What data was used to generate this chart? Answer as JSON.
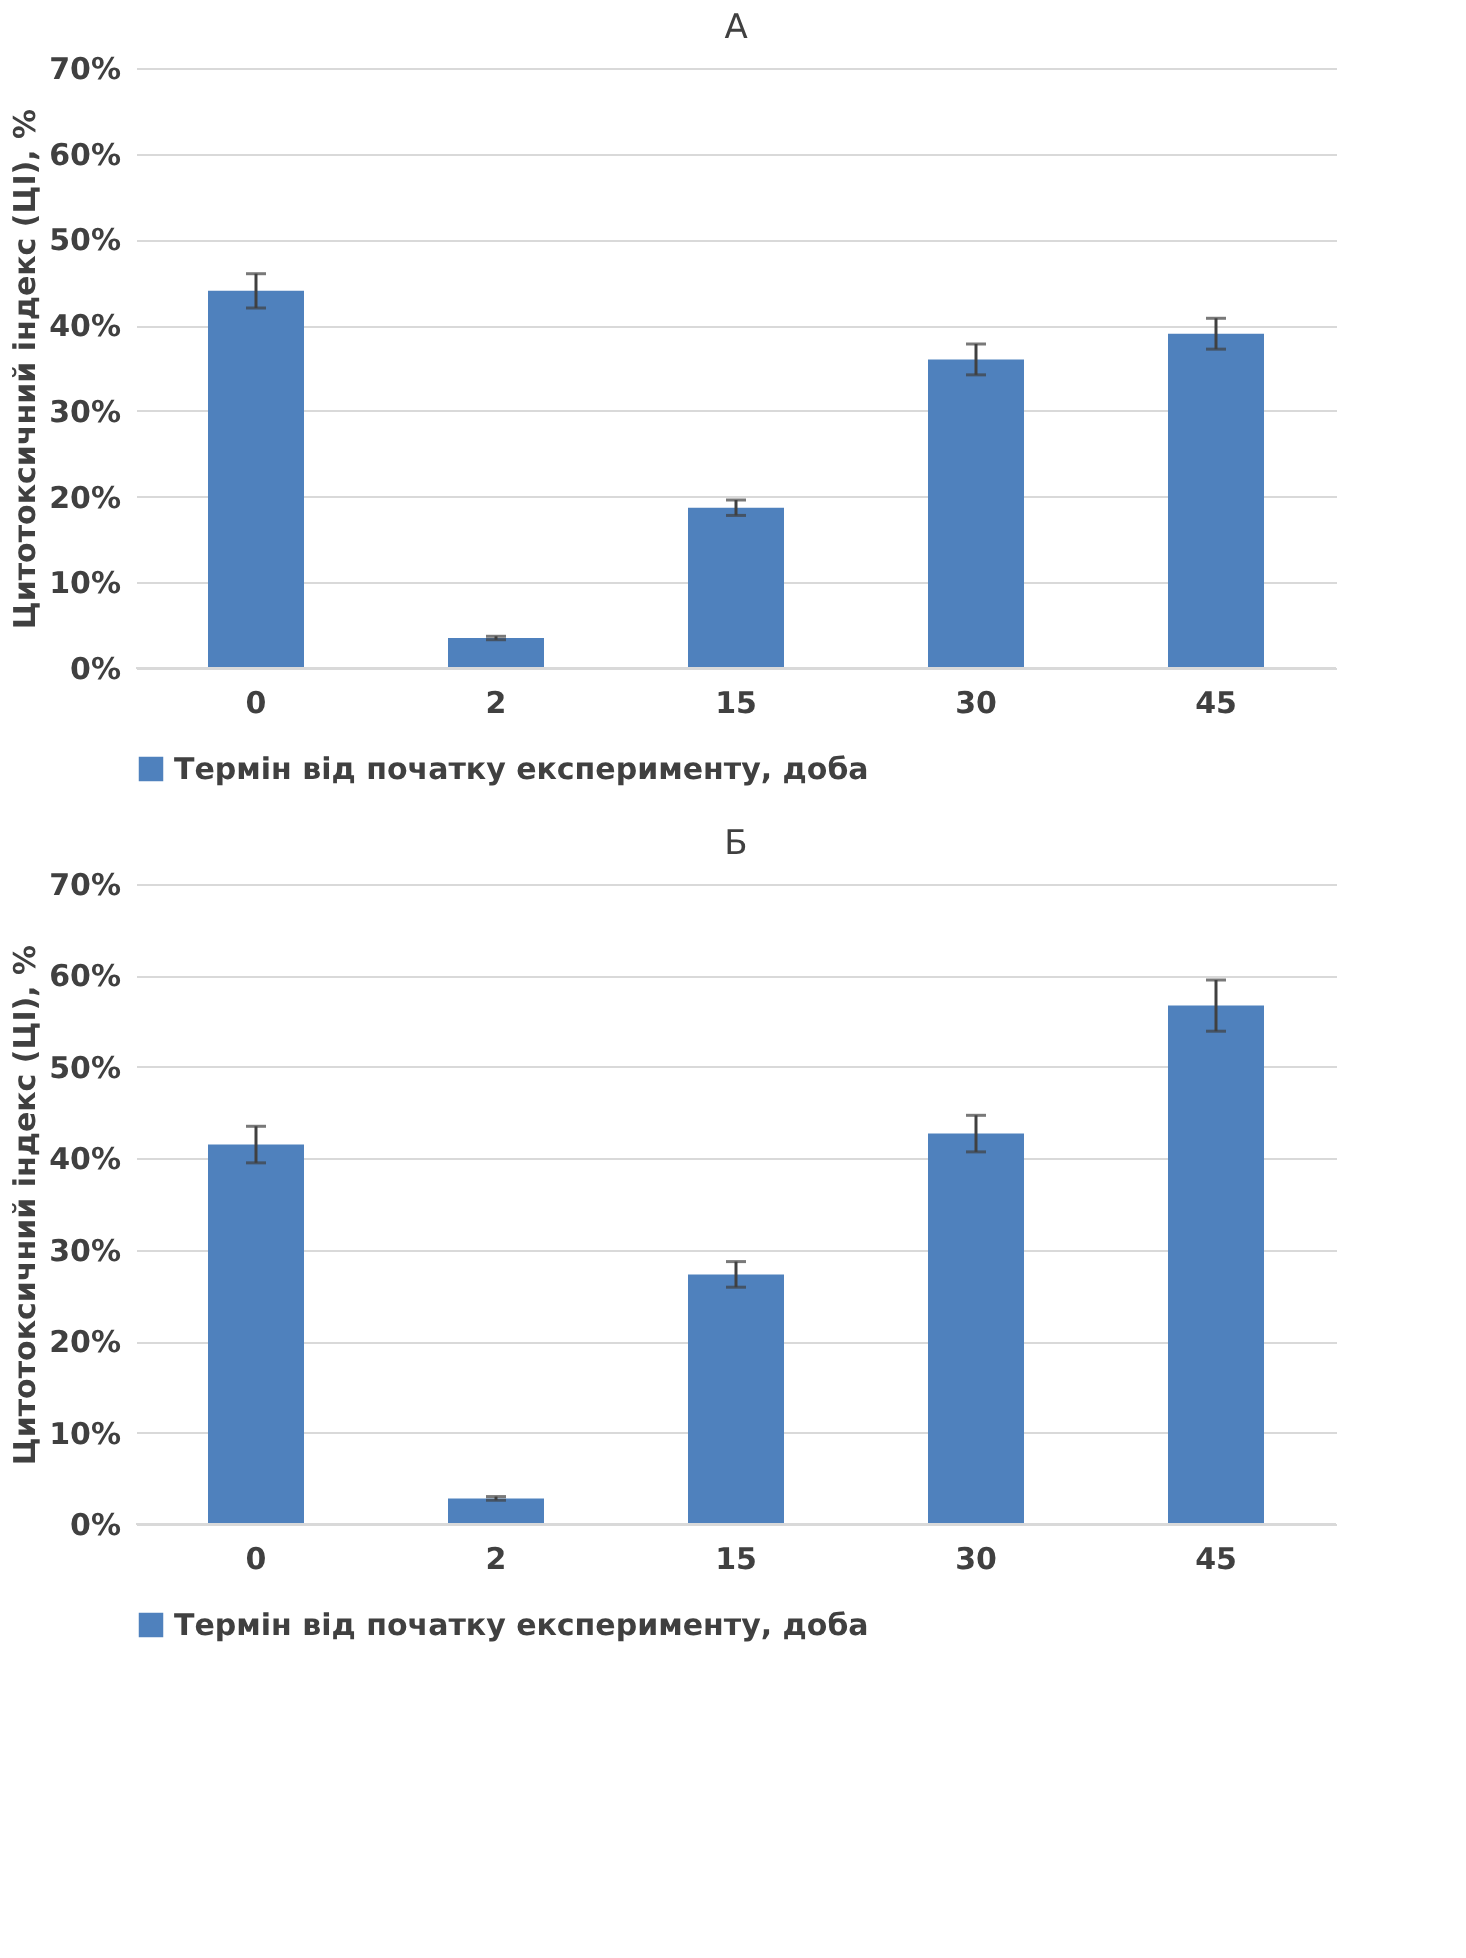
{
  "chart_data": [
    {
      "type": "bar",
      "title": "А",
      "ylabel": "Цитотоксичний індекс (ЦІ), %",
      "categories": [
        "0",
        "2",
        "15",
        "30",
        "45"
      ],
      "series": [
        {
          "name": "Термін від початку експерименту, доба",
          "color": "#4f81bd",
          "values": [
            44,
            3.5,
            18.7,
            36,
            39
          ],
          "errors": [
            2,
            0.2,
            0.9,
            1.8,
            1.8
          ]
        }
      ],
      "ylim": [
        0,
        70
      ],
      "yticks": [
        {
          "value": 0,
          "label": "0%"
        },
        {
          "value": 10,
          "label": "10%"
        },
        {
          "value": 20,
          "label": "20%"
        },
        {
          "value": 30,
          "label": "30%"
        },
        {
          "value": 40,
          "label": "40%"
        },
        {
          "value": 50,
          "label": "50%"
        },
        {
          "value": 60,
          "label": "60%"
        },
        {
          "value": 70,
          "label": "70%"
        }
      ],
      "grid": "y",
      "legend": "bottom"
    },
    {
      "type": "bar",
      "title": "Б",
      "ylabel": "Цитотоксичний індекс (ЦІ), %",
      "categories": [
        "0",
        "2",
        "15",
        "30",
        "45"
      ],
      "series": [
        {
          "name": "Термін від початку експерименту, доба",
          "color": "#4f81bd",
          "values": [
            41.5,
            2.8,
            27.3,
            42.7,
            56.7
          ],
          "errors": [
            2,
            0.2,
            1.4,
            2,
            2.8
          ]
        }
      ],
      "ylim": [
        0,
        70
      ],
      "yticks": [
        {
          "value": 0,
          "label": "0%"
        },
        {
          "value": 10,
          "label": "10%"
        },
        {
          "value": 20,
          "label": "20%"
        },
        {
          "value": 30,
          "label": "30%"
        },
        {
          "value": 40,
          "label": "40%"
        },
        {
          "value": 50,
          "label": "50%"
        },
        {
          "value": 60,
          "label": "60%"
        },
        {
          "value": 70,
          "label": "70%"
        }
      ],
      "grid": "y",
      "legend": "bottom"
    }
  ]
}
